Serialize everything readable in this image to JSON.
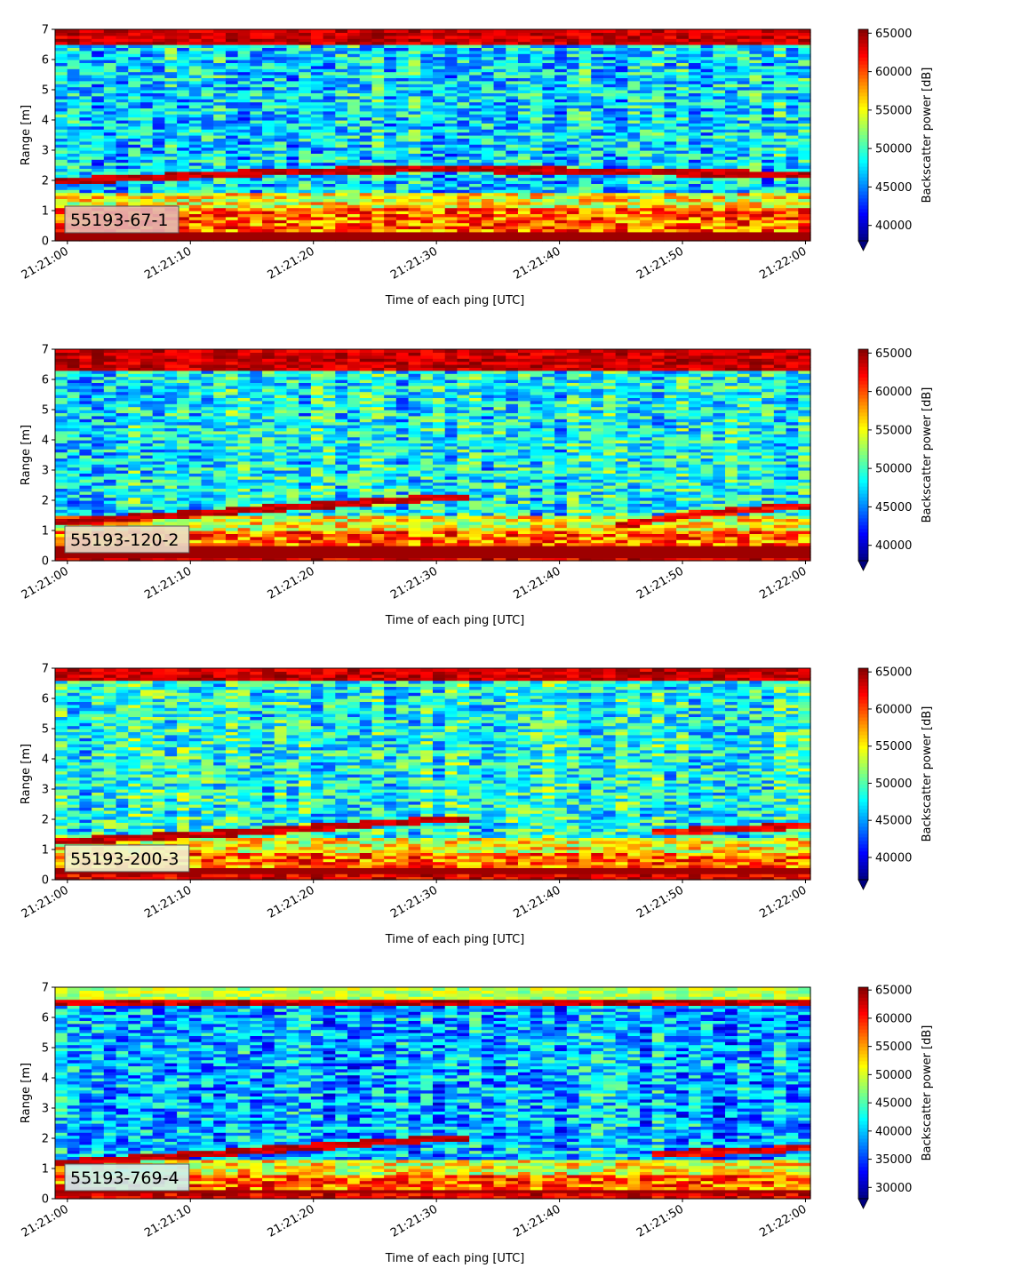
{
  "chart_data": [
    {
      "type": "heatmap",
      "panel_label": "55193-67-1",
      "xlabel": "Time of each ping [UTC]",
      "ylabel": "Range [m]",
      "colorbar_label": "Backscatter power [dB]",
      "x_ticks": [
        "21:21:00",
        "21:21:10",
        "21:21:20",
        "21:21:30",
        "21:21:40",
        "21:21:50",
        "21:22:00"
      ],
      "y_ticks": [
        "0",
        "1",
        "2",
        "3",
        "4",
        "5",
        "6",
        "7"
      ],
      "ylim": [
        0,
        7
      ],
      "colorbar_ticks": [
        "40000",
        "45000",
        "50000",
        "55000",
        "60000",
        "65000"
      ],
      "colorbar_range": [
        38000,
        65500
      ],
      "colormap": "jet",
      "label_box_color": "#e4b3b3",
      "profile": {
        "bottom_band": [
          0,
          0.3
        ],
        "low_band_top": 1.1,
        "trace": [
          [
            0,
            2.0
          ],
          [
            18,
            2.3
          ],
          [
            30,
            2.4
          ],
          [
            60,
            2.2
          ]
        ],
        "surface": [
          6.5,
          7.0
        ],
        "noise_level": 0.35
      }
    },
    {
      "type": "heatmap",
      "panel_label": "55193-120-2",
      "xlabel": "Time of each ping [UTC]",
      "ylabel": "Range [m]",
      "colorbar_label": "Backscatter power [dB]",
      "x_ticks": [
        "21:21:00",
        "21:21:10",
        "21:21:20",
        "21:21:30",
        "21:21:40",
        "21:21:50",
        "21:22:00"
      ],
      "y_ticks": [
        "0",
        "1",
        "2",
        "3",
        "4",
        "5",
        "6",
        "7"
      ],
      "ylim": [
        0,
        7
      ],
      "colorbar_ticks": [
        "40000",
        "45000",
        "50000",
        "55000",
        "60000",
        "65000"
      ],
      "colorbar_range": [
        38000,
        65500
      ],
      "colormap": "jet",
      "label_box_color": "#eadcc8",
      "profile": {
        "bottom_band": [
          0.1,
          0.5
        ],
        "low_band_top": 1.0,
        "trace": [
          [
            0,
            1.3
          ],
          [
            15,
            1.7
          ],
          [
            30,
            2.1
          ],
          [
            33,
            2.1
          ]
        ],
        "trace2": [
          [
            45,
            1.2
          ],
          [
            50,
            1.5
          ],
          [
            58,
            1.8
          ]
        ],
        "surface": [
          6.3,
          7.0
        ],
        "noise_level": 0.38
      }
    },
    {
      "type": "heatmap",
      "panel_label": "55193-200-3",
      "xlabel": "Time of each ping [UTC]",
      "ylabel": "Range [m]",
      "colorbar_label": "Backscatter power [dB]",
      "x_ticks": [
        "21:21:00",
        "21:21:10",
        "21:21:20",
        "21:21:30",
        "21:21:40",
        "21:21:50",
        "21:22:00"
      ],
      "y_ticks": [
        "0",
        "1",
        "2",
        "3",
        "4",
        "5",
        "6",
        "7"
      ],
      "ylim": [
        0,
        7
      ],
      "colorbar_ticks": [
        "40000",
        "45000",
        "50000",
        "55000",
        "60000",
        "65000"
      ],
      "colorbar_range": [
        37000,
        65500
      ],
      "colormap": "jet",
      "label_box_color": "#f2f5d0",
      "profile": {
        "bottom_band": [
          0.2,
          0.45
        ],
        "low_band_top": 0.9,
        "trace": [
          [
            0,
            1.3
          ],
          [
            15,
            1.6
          ],
          [
            30,
            2.0
          ],
          [
            33,
            2.0
          ]
        ],
        "trace2": [
          [
            48,
            1.6
          ],
          [
            55,
            1.7
          ],
          [
            60,
            1.8
          ]
        ],
        "surface": [
          6.6,
          7.0
        ],
        "noise_level": 0.4
      }
    },
    {
      "type": "heatmap",
      "panel_label": "55193-769-4",
      "xlabel": "Time of each ping [UTC]",
      "ylabel": "Range [m]",
      "colorbar_label": "Backscatter power [dB]",
      "x_ticks": [
        "21:21:00",
        "21:21:10",
        "21:21:20",
        "21:21:30",
        "21:21:40",
        "21:21:50",
        "21:22:00"
      ],
      "y_ticks": [
        "0",
        "1",
        "2",
        "3",
        "4",
        "5",
        "6",
        "7"
      ],
      "ylim": [
        0,
        7
      ],
      "colorbar_ticks": [
        "30000",
        "35000",
        "40000",
        "45000",
        "50000",
        "55000",
        "60000",
        "65000"
      ],
      "colorbar_range": [
        28000,
        65500
      ],
      "colormap": "jet",
      "label_box_color": "#cdeef2",
      "profile": {
        "bottom_band": [
          0.2,
          0.35
        ],
        "low_band_top": 0.8,
        "trace": [
          [
            0,
            1.2
          ],
          [
            15,
            1.6
          ],
          [
            30,
            2.0
          ],
          [
            33,
            2.0
          ]
        ],
        "trace2": [
          [
            48,
            1.5
          ],
          [
            56,
            1.6
          ],
          [
            60,
            1.7
          ]
        ],
        "surface": [
          6.4,
          6.6
        ],
        "noise_level": 0.3
      }
    }
  ]
}
